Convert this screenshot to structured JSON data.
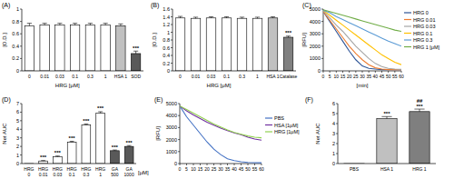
{
  "chart_data": [
    {
      "type": "bar",
      "title": "(A)",
      "y_label": "[O.D.]",
      "x_label": "HRG [μM]",
      "categories": [
        "0",
        "0.01",
        "0.03",
        "0.1",
        "0.3",
        "1",
        "HSA 1",
        "SOD"
      ],
      "values": [
        0.73,
        0.74,
        0.74,
        0.74,
        0.74,
        0.74,
        0.73,
        0.28
      ],
      "errors": [
        0.04,
        0.03,
        0.03,
        0.03,
        0.03,
        0.03,
        0.03,
        0.04
      ],
      "colors": [
        "#ffffff",
        "#ffffff",
        "#ffffff",
        "#ffffff",
        "#ffffff",
        "#ffffff",
        "#c0c0c0",
        "#595959"
      ],
      "annotations": [
        [],
        [],
        [],
        [],
        [],
        [],
        [],
        [
          "***"
        ]
      ],
      "ylim": [
        0,
        1
      ],
      "yticks": [
        0,
        0.2,
        0.4,
        0.6,
        0.8,
        1
      ]
    },
    {
      "type": "bar",
      "title": "(B)",
      "y_label": "[O.D.]",
      "x_label": "HRG [μM]",
      "categories": [
        "0",
        "0.01",
        "0.03",
        "0.1",
        "0.3",
        "1",
        "HSA 1",
        "Catalase"
      ],
      "values": [
        1.37,
        1.36,
        1.37,
        1.37,
        1.36,
        1.36,
        1.37,
        0.87
      ],
      "errors": [
        0.04,
        0.03,
        0.03,
        0.03,
        0.03,
        0.03,
        0.03,
        0.03
      ],
      "colors": [
        "#ffffff",
        "#ffffff",
        "#ffffff",
        "#ffffff",
        "#ffffff",
        "#ffffff",
        "#c0c0c0",
        "#808080"
      ],
      "annotations": [
        [],
        [],
        [],
        [],
        [],
        [],
        [],
        [
          "***"
        ]
      ],
      "ylim": [
        0,
        1.6
      ],
      "yticks": [
        0,
        0.2,
        0.4,
        0.6,
        0.8,
        1,
        1.2,
        1.4,
        1.6
      ]
    },
    {
      "type": "line",
      "title": "(C)",
      "y_label": "[RFU]",
      "x_label": "[min]",
      "legend": "right",
      "x": [
        0,
        5,
        10,
        15,
        20,
        25,
        30,
        35,
        40,
        45,
        50,
        55,
        60
      ],
      "series": [
        {
          "name": "HRG 0",
          "color": "#2e5597",
          "values": [
            4800,
            4000,
            3200,
            2400,
            1600,
            900,
            400,
            200,
            150,
            100,
            100,
            100,
            100
          ]
        },
        {
          "name": "HRG 0.01",
          "color": "#ed7d31",
          "values": [
            4800,
            4100,
            3400,
            2700,
            2000,
            1400,
            900,
            500,
            250,
            150,
            100,
            100,
            100
          ]
        },
        {
          "name": "HRG 0.03",
          "color": "#a5a5a5",
          "values": [
            4850,
            4300,
            3700,
            3200,
            2600,
            2000,
            1500,
            1000,
            600,
            350,
            200,
            150,
            120
          ]
        },
        {
          "name": "HRG 0.1",
          "color": "#ffc000",
          "values": [
            4900,
            4500,
            4100,
            3700,
            3300,
            2900,
            2500,
            2100,
            1700,
            1300,
            1000,
            700,
            500
          ]
        },
        {
          "name": "HRG 0.3",
          "color": "#5b9bd5",
          "values": [
            4900,
            4700,
            4400,
            4150,
            3900,
            3650,
            3400,
            3150,
            2900,
            2650,
            2400,
            2200,
            2000
          ]
        },
        {
          "name": "HRG 1 [μM]",
          "color": "#70ad47",
          "values": [
            4950,
            4800,
            4650,
            4500,
            4350,
            4200,
            4050,
            3900,
            3750,
            3600,
            3450,
            3300,
            3200
          ]
        }
      ],
      "xlim": [
        0,
        60
      ],
      "xticks": [
        0,
        5,
        10,
        15,
        20,
        25,
        30,
        35,
        40,
        45,
        50,
        55,
        60
      ],
      "ylim": [
        0,
        5000
      ],
      "yticks": [
        0,
        1000,
        2000,
        3000,
        4000,
        5000
      ]
    },
    {
      "type": "bar",
      "title": "(D)",
      "y_label": "Net AUC",
      "x_label": "[μM]",
      "categories": [
        "HRG 0",
        "HRG 0.01",
        "HRG 0.03",
        "HRG 0.1",
        "HRG 0.3",
        "HRG 1",
        "GA 500",
        "GA 1000"
      ],
      "values": [
        0,
        0.3,
        0.8,
        2.5,
        4.5,
        5.9,
        1.5,
        2.0
      ],
      "errors": [
        0,
        0.05,
        0.08,
        0.1,
        0.12,
        0.15,
        0.08,
        0.1
      ],
      "colors": [
        "#ffffff",
        "#ffffff",
        "#ffffff",
        "#ffffff",
        "#ffffff",
        "#ffffff",
        "#595959",
        "#595959"
      ],
      "annotations": [
        [],
        [
          "***"
        ],
        [
          "***"
        ],
        [
          "***"
        ],
        [
          "***"
        ],
        [
          "***"
        ],
        [
          "***"
        ],
        [
          "***"
        ]
      ],
      "ylim": [
        0,
        7
      ],
      "yticks": [
        0,
        1,
        2,
        3,
        4,
        5,
        6,
        7
      ]
    },
    {
      "type": "line",
      "title": "(E)",
      "y_label": "[RFU]",
      "legend": "right",
      "x": [
        0,
        5,
        10,
        15,
        20,
        25,
        30,
        35,
        40,
        45,
        50,
        55,
        60
      ],
      "series": [
        {
          "name": "PBS",
          "color": "#4472c4",
          "values": [
            4800,
            3900,
            3200,
            2500,
            1800,
            1200,
            750,
            400,
            250,
            150,
            100,
            80,
            70
          ]
        },
        {
          "name": "HSA [1μM]",
          "color": "#7030a0",
          "values": [
            4800,
            4400,
            4050,
            3750,
            3450,
            3200,
            2950,
            2750,
            2550,
            2400,
            2200,
            2050,
            1950
          ]
        },
        {
          "name": "HRG [1μM]",
          "color": "#92d050",
          "values": [
            4800,
            4500,
            4200,
            3900,
            3600,
            3300,
            3050,
            2800,
            2600,
            2450,
            2300,
            2200,
            2150
          ]
        }
      ],
      "xlim": [
        0,
        60
      ],
      "xticks": [
        0,
        5,
        10,
        15,
        20,
        25,
        30,
        35,
        40,
        45,
        50,
        55,
        60
      ],
      "ylim": [
        0,
        5000
      ],
      "yticks": [
        0,
        1000,
        2000,
        3000,
        4000,
        5000
      ]
    },
    {
      "type": "bar",
      "title": "(F)",
      "y_label": "Net AUC",
      "categories": [
        "PBS",
        "HSA 1",
        "HRG 1"
      ],
      "values": [
        0,
        4.5,
        5.2
      ],
      "errors": [
        0,
        0.2,
        0.25
      ],
      "colors": [
        "#ffffff",
        "#c0c0c0",
        "#7f7f7f"
      ],
      "annotations": [
        [],
        [
          "***"
        ],
        [
          "***",
          "##"
        ]
      ],
      "ylim": [
        0,
        6
      ],
      "yticks": [
        0,
        1,
        2,
        3,
        4,
        5,
        6
      ]
    }
  ]
}
